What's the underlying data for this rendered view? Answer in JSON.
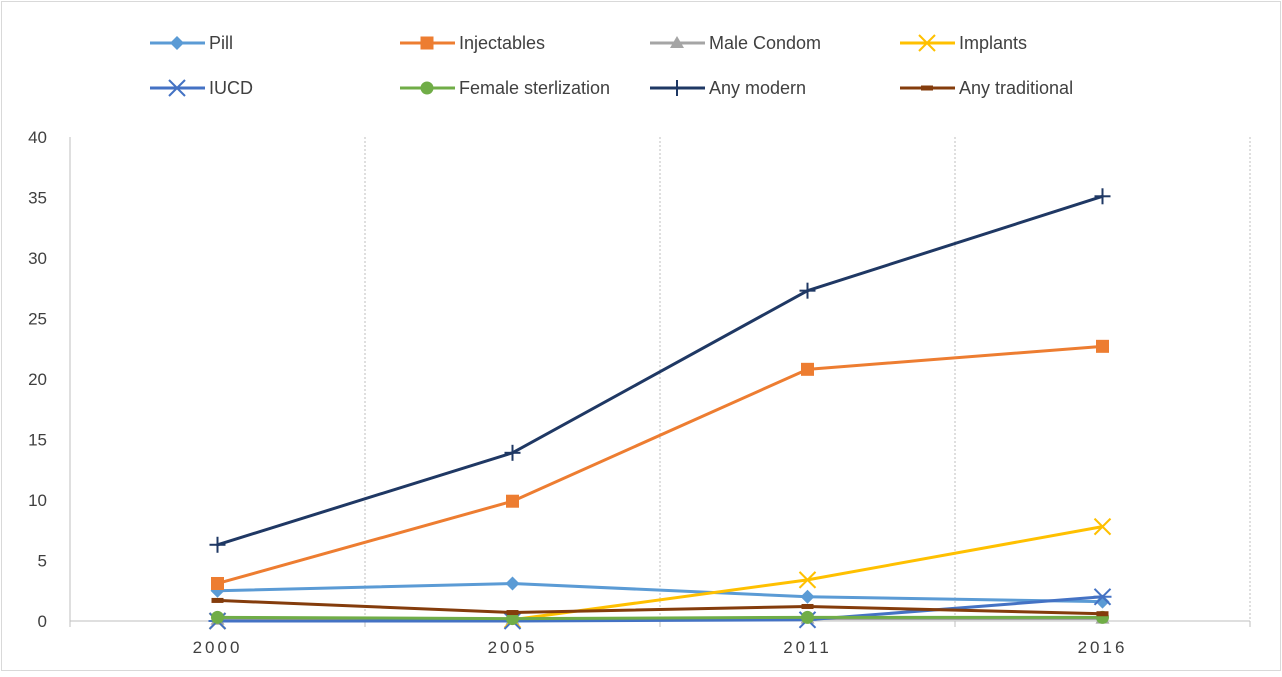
{
  "chart_data": {
    "type": "line",
    "title": "",
    "xlabel": "",
    "ylabel": "",
    "categories": [
      "2000",
      "2005",
      "2011",
      "2016"
    ],
    "ylim": [
      0,
      40
    ],
    "yticks": [
      0,
      5,
      10,
      15,
      20,
      25,
      30,
      35,
      40
    ],
    "grid": "vertical",
    "legend_position": "top",
    "series": [
      {
        "name": "Pill",
        "values": [
          2.5,
          3.1,
          2.0,
          1.6
        ],
        "color": "#5B9BD5",
        "marker": "diamond"
      },
      {
        "name": "Injectables",
        "values": [
          3.1,
          9.9,
          20.8,
          22.7
        ],
        "color": "#ED7D31",
        "marker": "square"
      },
      {
        "name": "Male Condom",
        "values": [
          0.1,
          0.1,
          0.2,
          0.2
        ],
        "color": "#A5A5A5",
        "marker": "triangle"
      },
      {
        "name": "Implants",
        "values": [
          0.0,
          0.1,
          3.4,
          7.8
        ],
        "color": "#FFC000",
        "marker": "x"
      },
      {
        "name": "IUCD",
        "values": [
          0.0,
          0.0,
          0.1,
          2.0
        ],
        "color": "#4472C4",
        "marker": "asterisk"
      },
      {
        "name": "Female sterlization",
        "values": [
          0.3,
          0.2,
          0.3,
          0.3
        ],
        "color": "#70AD47",
        "marker": "circle"
      },
      {
        "name": "Any modern",
        "values": [
          6.3,
          13.9,
          27.3,
          35.1
        ],
        "color": "#1F3864",
        "marker": "plus"
      },
      {
        "name": "Any traditional",
        "values": [
          1.7,
          0.7,
          1.2,
          0.6
        ],
        "color": "#843C0C",
        "marker": "dash"
      }
    ]
  }
}
